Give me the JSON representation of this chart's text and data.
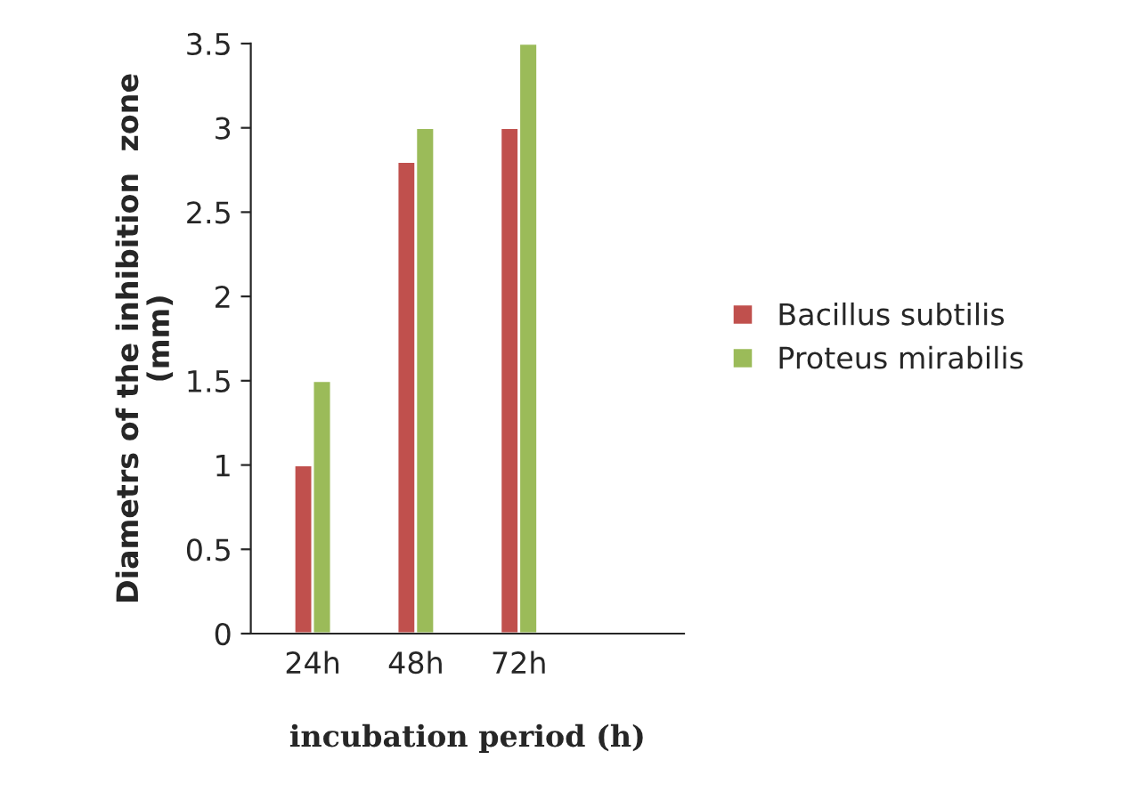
{
  "chart_data": {
    "type": "bar",
    "xlabel": "incubation period (h)",
    "ylabel": "Diametrs of the inhibition  zone\n(mm)",
    "categories": [
      "24h",
      "48h",
      "72h"
    ],
    "series": [
      {
        "name": "Bacillus subtilis",
        "color": "#c0504d",
        "values": [
          1,
          2.8,
          3
        ]
      },
      {
        "name": "Proteus mirabilis",
        "color": "#9bbb59",
        "values": [
          1.5,
          3,
          3.5
        ]
      }
    ],
    "ylim": [
      0,
      3.5
    ],
    "yticks": [
      0,
      0.5,
      1,
      1.5,
      2,
      2.5,
      3,
      3.5
    ],
    "grid": false,
    "legend": "right"
  }
}
